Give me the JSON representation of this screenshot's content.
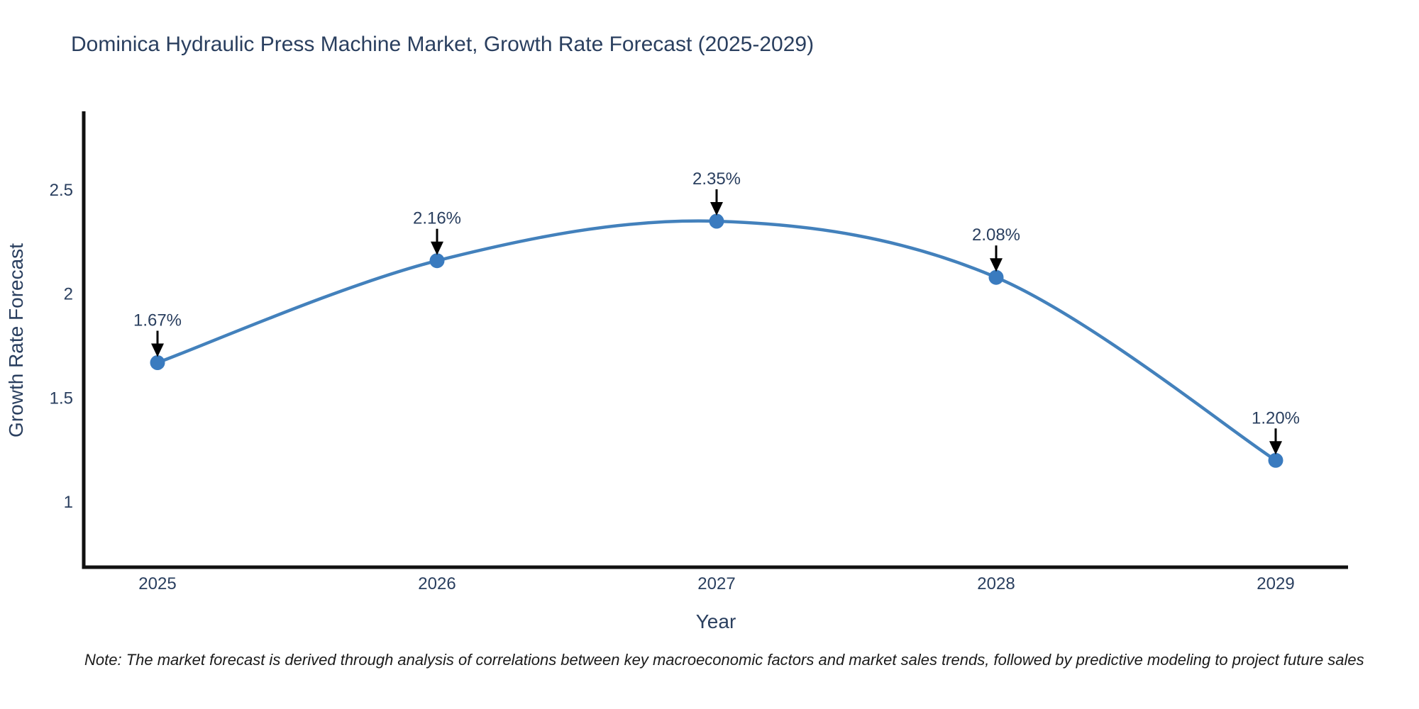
{
  "chart_data": {
    "type": "line",
    "title": "Dominica Hydraulic Press Machine Market, Growth Rate Forecast (2025-2029)",
    "x": [
      2025,
      2026,
      2027,
      2028,
      2029
    ],
    "series": [
      {
        "name": "Growth Rate Forecast",
        "values": [
          1.67,
          2.16,
          2.35,
          2.08,
          1.2
        ]
      }
    ],
    "point_labels": [
      "1.67%",
      "2.16%",
      "2.35%",
      "2.08%",
      "1.20%"
    ],
    "xlabel": "Year",
    "ylabel": "Growth Rate Forecast",
    "yticks": [
      2.5,
      2,
      1.5,
      1
    ],
    "ylim": [
      0.69,
      2.87
    ],
    "line_shape": "spline",
    "grid": false,
    "legend_position": "none",
    "colors": {
      "line": "#4381bc",
      "marker": "#3a7bbf",
      "axis": "#111111",
      "text": "#2a3f5f",
      "arrow": "#000000",
      "background": "#ffffff"
    }
  },
  "footnote": "Note: The market forecast is derived through analysis of correlations between key macroeconomic factors and market sales trends, followed by predictive modeling to project future sales"
}
